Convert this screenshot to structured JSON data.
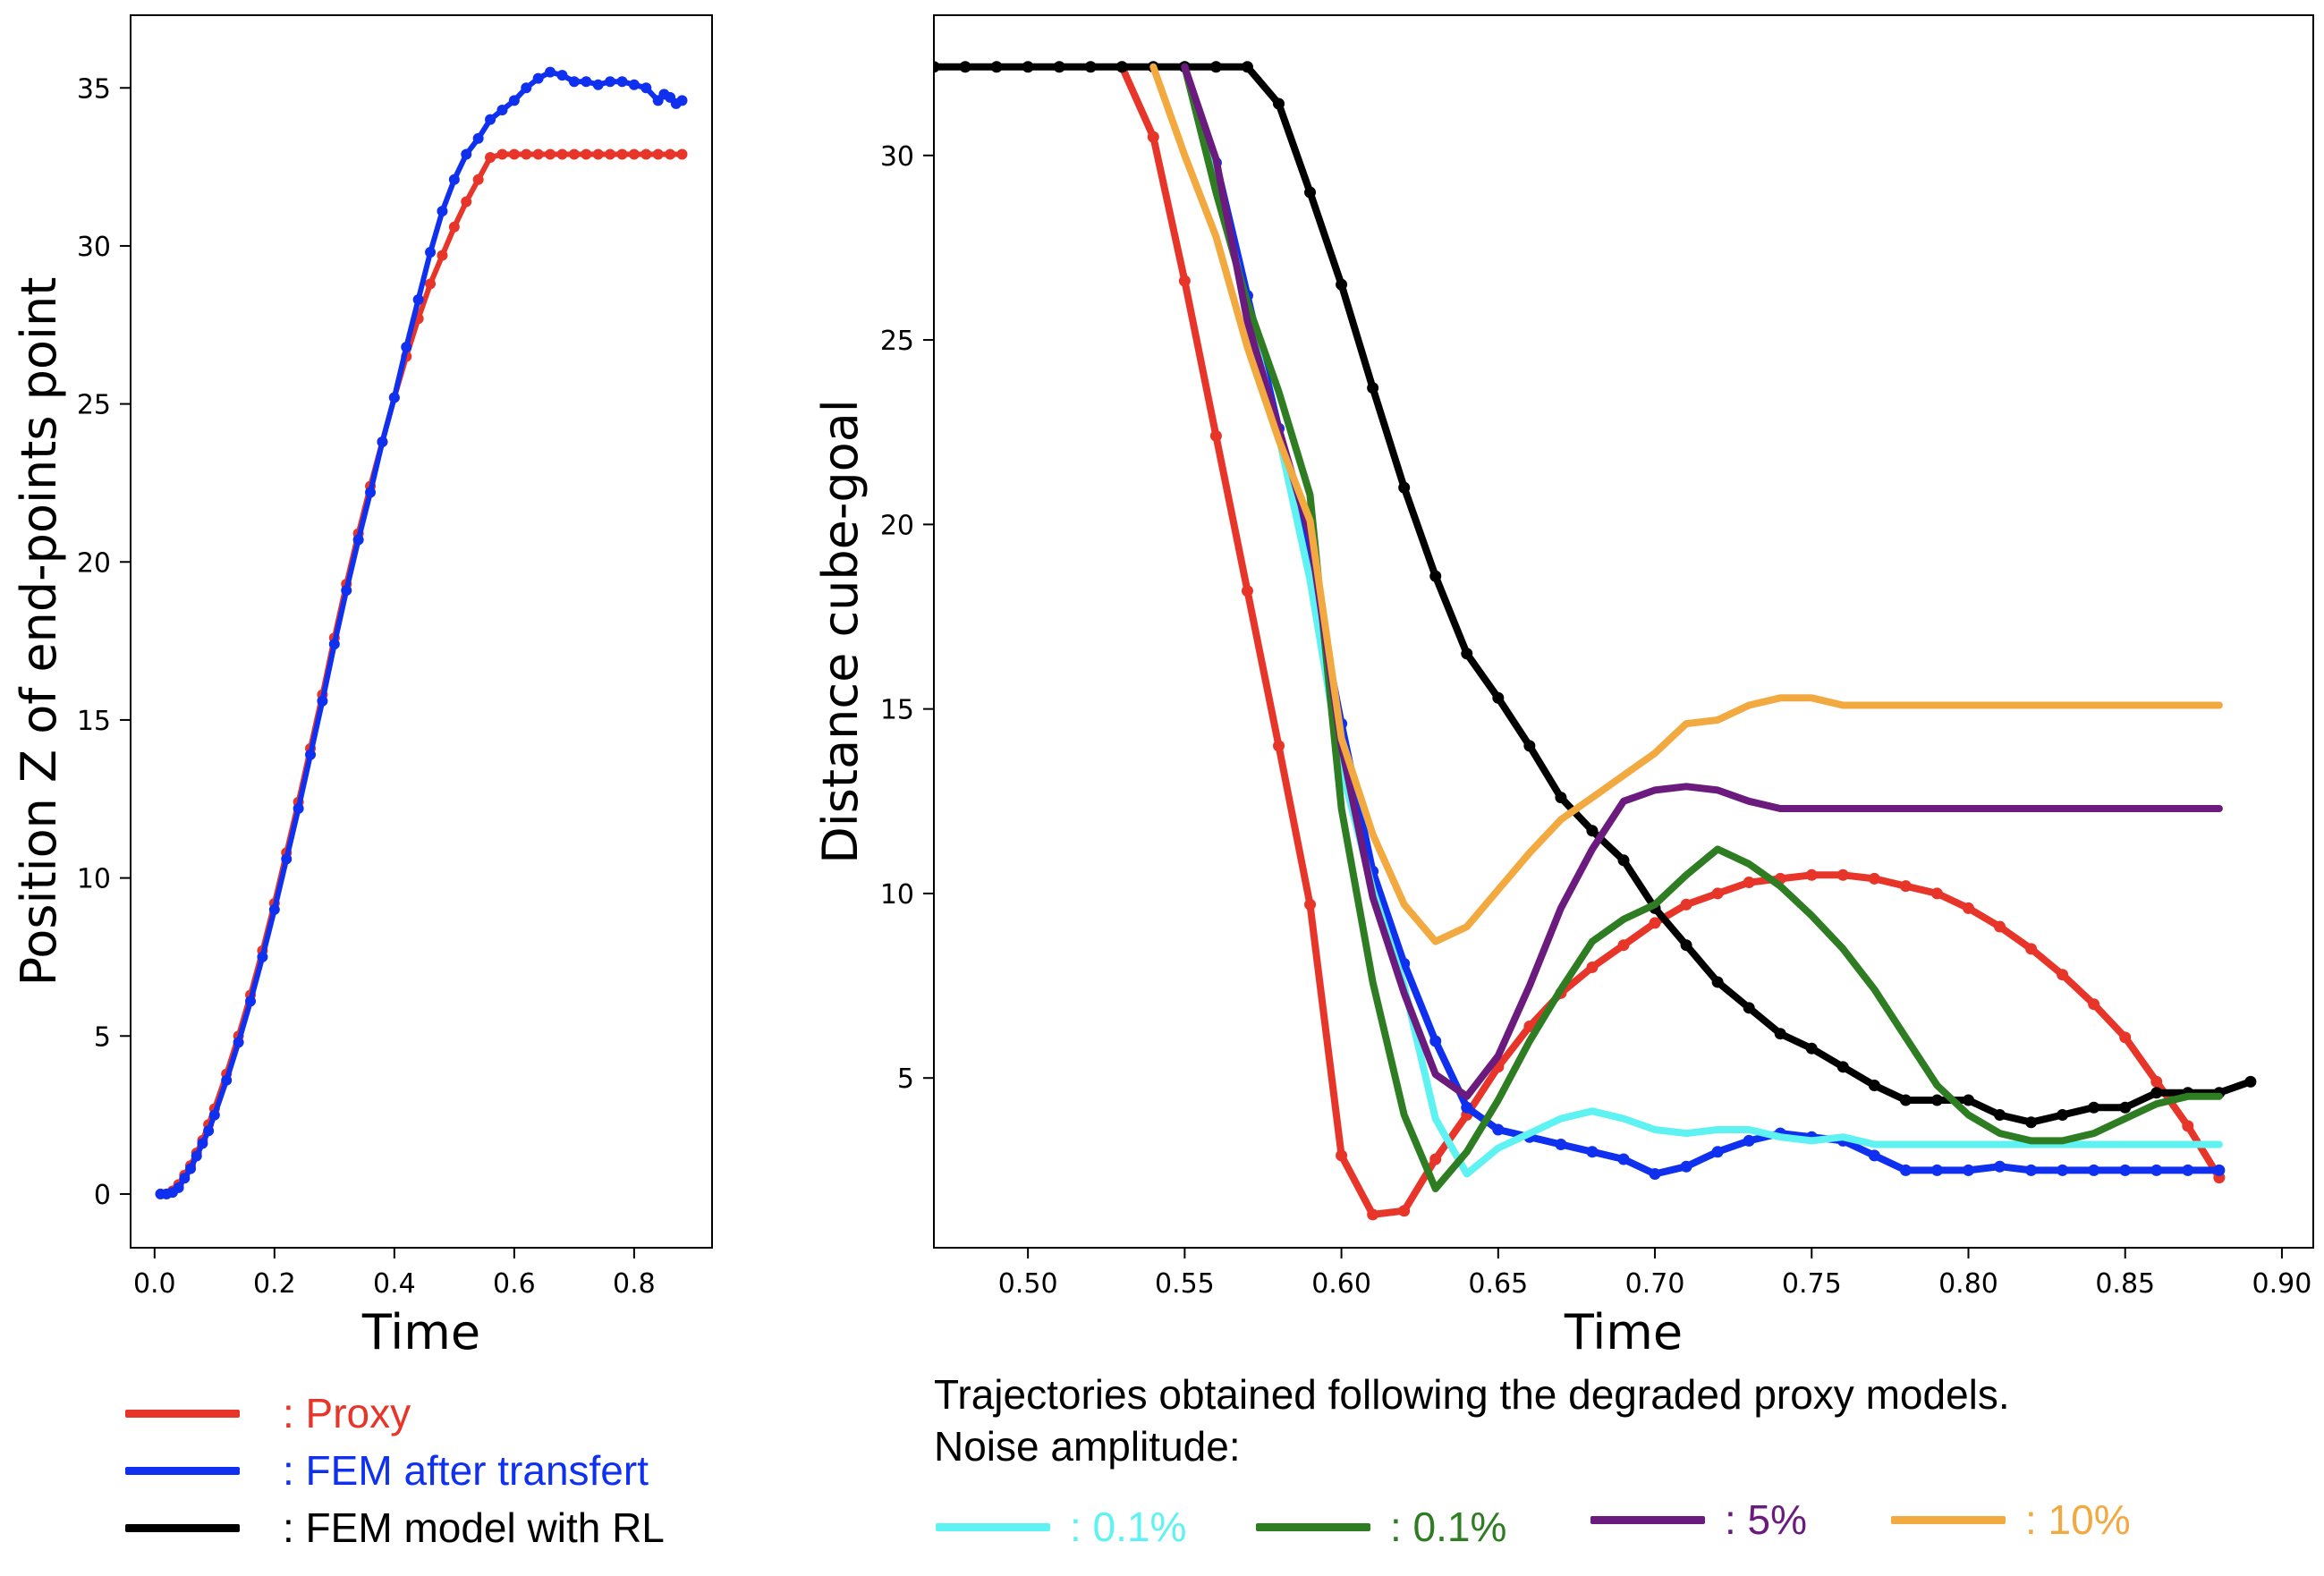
{
  "chart_data": [
    {
      "type": "line",
      "xlabel": "Time",
      "ylabel": "Position Z of end-points point",
      "xlim": [
        -0.04,
        0.93
      ],
      "ylim": [
        -1.7,
        37.3
      ],
      "xticks": [
        "0.0",
        "0.2",
        "0.4",
        "0.6",
        "0.8"
      ],
      "xtick_values": [
        0.0,
        0.2,
        0.4,
        0.6,
        0.8
      ],
      "yticks": [
        "0",
        "5",
        "10",
        "15",
        "20",
        "25",
        "30",
        "35"
      ],
      "ytick_values": [
        0,
        5,
        10,
        15,
        20,
        25,
        30,
        35
      ],
      "grid": false,
      "series": [
        {
          "name": "Proxy",
          "color": "#e8352a",
          "x": [
            0.01,
            0.02,
            0.03,
            0.04,
            0.05,
            0.06,
            0.07,
            0.08,
            0.09,
            0.1,
            0.12,
            0.14,
            0.16,
            0.18,
            0.2,
            0.22,
            0.24,
            0.26,
            0.28,
            0.3,
            0.32,
            0.34,
            0.36,
            0.38,
            0.4,
            0.42,
            0.44,
            0.46,
            0.48,
            0.5,
            0.52,
            0.54,
            0.56,
            0.58,
            0.6,
            0.62,
            0.64,
            0.66,
            0.68,
            0.7,
            0.72,
            0.74,
            0.76,
            0.78,
            0.8,
            0.82,
            0.84,
            0.86,
            0.88
          ],
          "values": [
            0.0,
            0.0,
            0.1,
            0.3,
            0.6,
            0.9,
            1.3,
            1.7,
            2.2,
            2.7,
            3.8,
            5.0,
            6.3,
            7.7,
            9.2,
            10.8,
            12.4,
            14.1,
            15.8,
            17.6,
            19.3,
            20.9,
            22.4,
            23.8,
            25.2,
            26.5,
            27.7,
            28.8,
            29.7,
            30.6,
            31.4,
            32.1,
            32.8,
            32.9,
            32.9,
            32.9,
            32.9,
            32.9,
            32.9,
            32.9,
            32.9,
            32.9,
            32.9,
            32.9,
            32.9,
            32.9,
            32.9,
            32.9,
            32.9
          ]
        },
        {
          "name": "FEM after transfert",
          "color": "#1030f0",
          "x": [
            0.01,
            0.02,
            0.03,
            0.04,
            0.05,
            0.06,
            0.07,
            0.08,
            0.09,
            0.1,
            0.12,
            0.14,
            0.16,
            0.18,
            0.2,
            0.22,
            0.24,
            0.26,
            0.28,
            0.3,
            0.32,
            0.34,
            0.36,
            0.38,
            0.4,
            0.42,
            0.44,
            0.46,
            0.48,
            0.5,
            0.52,
            0.54,
            0.56,
            0.58,
            0.6,
            0.62,
            0.64,
            0.66,
            0.68,
            0.7,
            0.72,
            0.74,
            0.76,
            0.78,
            0.8,
            0.82,
            0.84,
            0.85,
            0.86,
            0.87,
            0.88
          ],
          "values": [
            0.0,
            0.0,
            0.05,
            0.2,
            0.5,
            0.8,
            1.2,
            1.6,
            2.0,
            2.5,
            3.6,
            4.8,
            6.1,
            7.5,
            9.0,
            10.6,
            12.2,
            13.9,
            15.6,
            17.4,
            19.1,
            20.7,
            22.2,
            23.8,
            25.2,
            26.8,
            28.3,
            29.8,
            31.1,
            32.1,
            32.9,
            33.4,
            34.0,
            34.3,
            34.6,
            35.0,
            35.3,
            35.5,
            35.4,
            35.2,
            35.2,
            35.1,
            35.2,
            35.2,
            35.1,
            35.0,
            34.6,
            34.8,
            34.7,
            34.5,
            34.6
          ]
        }
      ]
    },
    {
      "type": "line",
      "xlabel": "Time",
      "ylabel": "Distance cube-goal",
      "xlim": [
        0.47,
        0.91
      ],
      "ylim": [
        0.4,
        33.8
      ],
      "xticks": [
        "0.50",
        "0.55",
        "0.60",
        "0.65",
        "0.70",
        "0.75",
        "0.80",
        "0.85",
        "0.90"
      ],
      "xtick_values": [
        0.5,
        0.55,
        0.6,
        0.65,
        0.7,
        0.75,
        0.8,
        0.85,
        0.9
      ],
      "yticks": [
        "5",
        "10",
        "15",
        "20",
        "25",
        "30"
      ],
      "ytick_values": [
        5,
        10,
        15,
        20,
        25,
        30
      ],
      "grid": false,
      "series": [
        {
          "name": "Proxy",
          "color": "#e8352a",
          "markers": true,
          "x": [
            0.53,
            0.54,
            0.55,
            0.56,
            0.57,
            0.58,
            0.59,
            0.6,
            0.61,
            0.62,
            0.63,
            0.64,
            0.65,
            0.66,
            0.67,
            0.68,
            0.69,
            0.7,
            0.71,
            0.72,
            0.73,
            0.74,
            0.75,
            0.76,
            0.77,
            0.78,
            0.79,
            0.8,
            0.81,
            0.82,
            0.83,
            0.84,
            0.85,
            0.86,
            0.87,
            0.88
          ],
          "values": [
            32.4,
            30.5,
            26.6,
            22.4,
            18.2,
            14.0,
            9.7,
            2.9,
            1.3,
            1.4,
            2.8,
            4.0,
            5.3,
            6.4,
            7.3,
            8.0,
            8.6,
            9.2,
            9.7,
            10.0,
            10.3,
            10.4,
            10.5,
            10.5,
            10.4,
            10.2,
            10.0,
            9.6,
            9.1,
            8.5,
            7.8,
            7.0,
            6.1,
            4.9,
            3.7,
            2.3
          ]
        },
        {
          "name": "FEM after transfert",
          "color": "#1030f0",
          "markers": true,
          "x": [
            0.55,
            0.56,
            0.57,
            0.58,
            0.59,
            0.6,
            0.61,
            0.62,
            0.63,
            0.64,
            0.65,
            0.66,
            0.67,
            0.68,
            0.69,
            0.7,
            0.71,
            0.72,
            0.73,
            0.74,
            0.75,
            0.76,
            0.77,
            0.78,
            0.79,
            0.8,
            0.81,
            0.82,
            0.83,
            0.84,
            0.85,
            0.86,
            0.87,
            0.88
          ],
          "values": [
            32.4,
            29.8,
            26.2,
            22.6,
            18.9,
            14.6,
            10.6,
            8.1,
            6.0,
            4.2,
            3.6,
            3.4,
            3.2,
            3.0,
            2.8,
            2.4,
            2.6,
            3.0,
            3.3,
            3.5,
            3.4,
            3.3,
            2.9,
            2.5,
            2.5,
            2.5,
            2.6,
            2.5,
            2.5,
            2.5,
            2.5,
            2.5,
            2.5,
            2.5
          ]
        },
        {
          "name": "FEM model with RL",
          "color": "#000000",
          "markers": true,
          "x": [
            0.47,
            0.48,
            0.49,
            0.5,
            0.51,
            0.52,
            0.53,
            0.54,
            0.55,
            0.56,
            0.57,
            0.58,
            0.59,
            0.6,
            0.61,
            0.62,
            0.63,
            0.64,
            0.65,
            0.66,
            0.67,
            0.68,
            0.69,
            0.7,
            0.71,
            0.72,
            0.73,
            0.74,
            0.75,
            0.76,
            0.77,
            0.78,
            0.79,
            0.8,
            0.81,
            0.82,
            0.83,
            0.84,
            0.85,
            0.86,
            0.87,
            0.88,
            0.89
          ],
          "values": [
            32.4,
            32.4,
            32.4,
            32.4,
            32.4,
            32.4,
            32.4,
            32.4,
            32.4,
            32.4,
            32.4,
            31.4,
            29.0,
            26.5,
            23.7,
            21.0,
            18.6,
            16.5,
            15.3,
            14.0,
            12.6,
            11.7,
            10.9,
            9.6,
            8.6,
            7.6,
            6.9,
            6.2,
            5.8,
            5.3,
            4.8,
            4.4,
            4.4,
            4.4,
            4.0,
            3.8,
            4.0,
            4.2,
            4.2,
            4.6,
            4.6,
            4.6,
            4.9
          ]
        },
        {
          "name": "0.1%",
          "color": "#5ef2f2",
          "markers": false,
          "x": [
            0.55,
            0.56,
            0.57,
            0.58,
            0.59,
            0.6,
            0.61,
            0.62,
            0.63,
            0.64,
            0.65,
            0.66,
            0.67,
            0.68,
            0.69,
            0.7,
            0.71,
            0.72,
            0.73,
            0.74,
            0.75,
            0.76,
            0.77,
            0.78,
            0.79,
            0.8,
            0.81,
            0.82,
            0.83,
            0.84,
            0.85,
            0.86,
            0.87,
            0.88
          ],
          "values": [
            32.4,
            29.5,
            25.8,
            22.4,
            18.5,
            13.4,
            10.1,
            7.5,
            3.9,
            2.4,
            3.1,
            3.5,
            3.9,
            4.1,
            3.9,
            3.6,
            3.5,
            3.6,
            3.6,
            3.4,
            3.3,
            3.4,
            3.2,
            3.2,
            3.2,
            3.2,
            3.2,
            3.2,
            3.2,
            3.2,
            3.2,
            3.2,
            3.2,
            3.2
          ]
        },
        {
          "name": "0.1%",
          "color": "#2f7d23",
          "markers": false,
          "x": [
            0.55,
            0.56,
            0.57,
            0.58,
            0.59,
            0.6,
            0.61,
            0.62,
            0.63,
            0.64,
            0.65,
            0.66,
            0.67,
            0.68,
            0.69,
            0.7,
            0.71,
            0.72,
            0.73,
            0.74,
            0.75,
            0.76,
            0.77,
            0.78,
            0.79,
            0.8,
            0.81,
            0.82,
            0.83,
            0.84,
            0.85,
            0.86,
            0.87,
            0.88
          ],
          "values": [
            32.4,
            29.0,
            26.0,
            23.6,
            20.8,
            12.3,
            7.6,
            4.0,
            2.0,
            3.0,
            4.4,
            6.0,
            7.4,
            8.7,
            9.3,
            9.7,
            10.5,
            11.2,
            10.8,
            10.2,
            9.4,
            8.5,
            7.4,
            6.1,
            4.8,
            4.0,
            3.5,
            3.3,
            3.3,
            3.5,
            3.9,
            4.3,
            4.5,
            4.5
          ]
        },
        {
          "name": "5%",
          "color": "#6b1a7e",
          "markers": false,
          "x": [
            0.55,
            0.56,
            0.57,
            0.58,
            0.59,
            0.6,
            0.61,
            0.62,
            0.63,
            0.64,
            0.65,
            0.66,
            0.67,
            0.68,
            0.69,
            0.7,
            0.71,
            0.72,
            0.73,
            0.74,
            0.75,
            0.76,
            0.77,
            0.78,
            0.79,
            0.8,
            0.81,
            0.82,
            0.83,
            0.84,
            0.85,
            0.86,
            0.87,
            0.88
          ],
          "values": [
            32.4,
            29.9,
            25.5,
            22.6,
            19.7,
            14.0,
            9.9,
            7.3,
            5.1,
            4.5,
            5.6,
            7.5,
            9.6,
            11.2,
            12.5,
            12.8,
            12.9,
            12.8,
            12.5,
            12.3,
            12.3,
            12.3,
            12.3,
            12.3,
            12.3,
            12.3,
            12.3,
            12.3,
            12.3,
            12.3,
            12.3,
            12.3,
            12.3,
            12.3
          ]
        },
        {
          "name": "10%",
          "color": "#f2a940",
          "markers": false,
          "x": [
            0.54,
            0.55,
            0.56,
            0.57,
            0.58,
            0.59,
            0.6,
            0.61,
            0.62,
            0.63,
            0.64,
            0.65,
            0.66,
            0.67,
            0.68,
            0.69,
            0.7,
            0.71,
            0.72,
            0.73,
            0.74,
            0.75,
            0.76,
            0.77,
            0.78,
            0.79,
            0.8,
            0.81,
            0.82,
            0.83,
            0.84,
            0.85,
            0.86,
            0.87,
            0.88
          ],
          "values": [
            32.4,
            30.0,
            27.8,
            24.8,
            22.3,
            20.1,
            14.2,
            11.6,
            9.7,
            8.7,
            9.1,
            10.1,
            11.1,
            12.0,
            12.6,
            13.2,
            13.8,
            14.6,
            14.7,
            15.1,
            15.3,
            15.3,
            15.1,
            15.1,
            15.1,
            15.1,
            15.1,
            15.1,
            15.1,
            15.1,
            15.1,
            15.1,
            15.1,
            15.1,
            15.1
          ]
        }
      ]
    }
  ],
  "legend": {
    "items": [
      {
        "label": ": Proxy",
        "color": "#e8352a"
      },
      {
        "label": ": FEM after transfert",
        "color": "#1030f0"
      },
      {
        "label": ": FEM model with RL",
        "color": "#000000"
      }
    ]
  },
  "noise_note": {
    "line1": "Trajectories obtained following the degraded proxy models.",
    "line2": "Noise amplitude:"
  },
  "noise_legend": {
    "items": [
      {
        "label": ": 0.1%",
        "color": "#5ef2f2"
      },
      {
        "label": ": 0.1%",
        "color": "#2f7d23"
      },
      {
        "label": ": 5%",
        "color": "#6b1a7e"
      },
      {
        "label": ": 10%",
        "color": "#f2a940"
      }
    ]
  }
}
